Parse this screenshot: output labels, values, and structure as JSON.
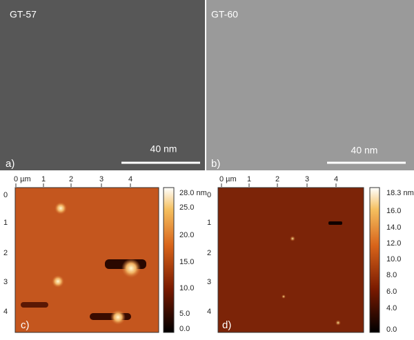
{
  "panels": [
    {
      "label": "a)",
      "sample": "GT-57",
      "scale_bar": "40 nm"
    },
    {
      "label": "b)",
      "sample": "GT-60",
      "scale_bar": "40 nm"
    },
    {
      "label": "c)",
      "x_ticks": [
        "0 µm",
        "1",
        "2",
        "3",
        "4"
      ],
      "y_ticks": [
        "0",
        "1",
        "2",
        "3",
        "4"
      ],
      "colorbar_ticks": [
        "28.0 nm",
        "25.0",
        "20.0",
        "15.0",
        "10.0",
        "5.0",
        "0.0"
      ]
    },
    {
      "label": "d)",
      "x_ticks": [
        "0 µm",
        "1",
        "2",
        "3",
        "4"
      ],
      "y_ticks": [
        "0",
        "1",
        "2",
        "3",
        "4"
      ],
      "colorbar_ticks": [
        "18.3 nm",
        "16.0",
        "14.0",
        "12.0",
        "10.0",
        "8.0",
        "6.0",
        "4.0",
        "0.0"
      ]
    }
  ]
}
